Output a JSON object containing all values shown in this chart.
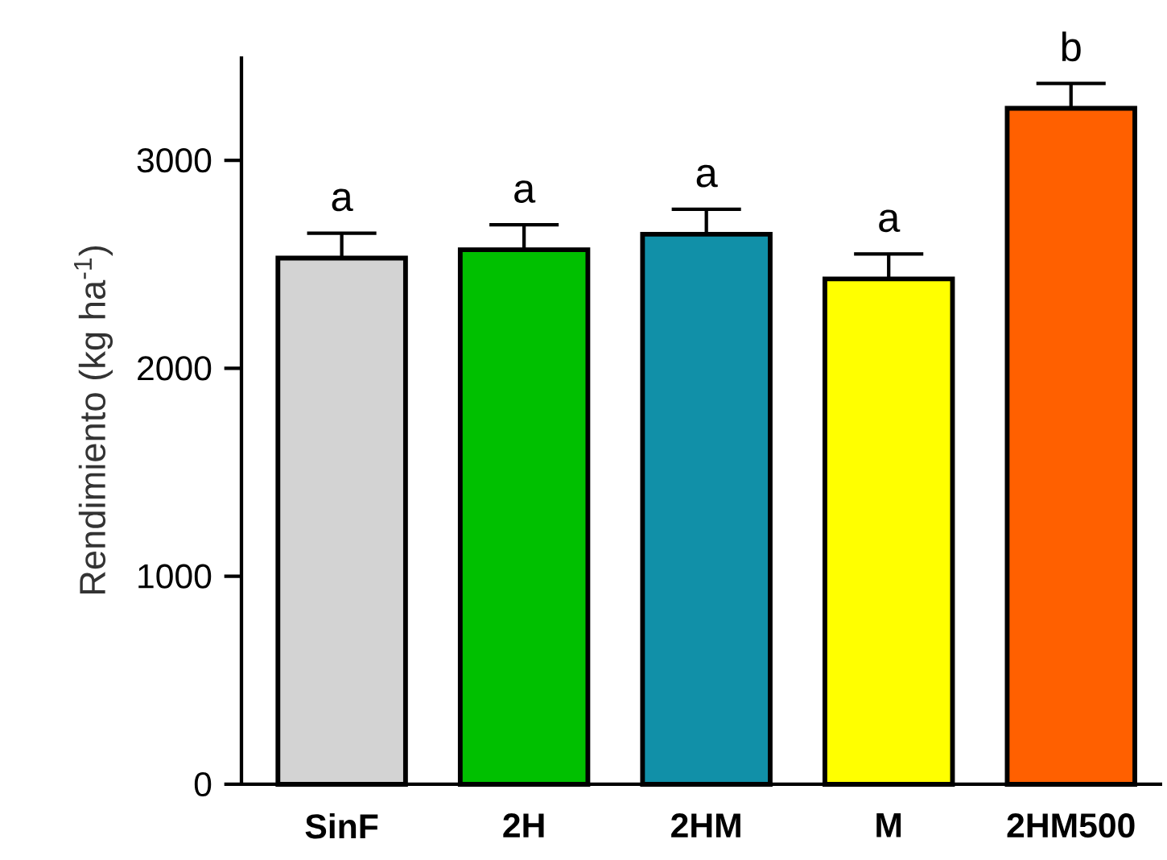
{
  "chart_data": {
    "type": "bar",
    "ylabel": "Rendimiento (kg ha$^{-1}$)",
    "categories": [
      "SinF",
      "2H",
      "2HM",
      "M",
      "2HM500"
    ],
    "values": [
      2530,
      2570,
      2645,
      2430,
      3250
    ],
    "errors": [
      120,
      120,
      120,
      120,
      120
    ],
    "colors": [
      "#d3d3d3",
      "#00c000",
      "#1190a8",
      "#ffff00",
      "#ff6000"
    ],
    "ylim": [
      0,
      3500
    ],
    "yticks": [
      0,
      1000,
      2000,
      3000
    ],
    "grid": false,
    "annotations": [
      "a",
      "a",
      "a",
      "a",
      "b"
    ]
  }
}
